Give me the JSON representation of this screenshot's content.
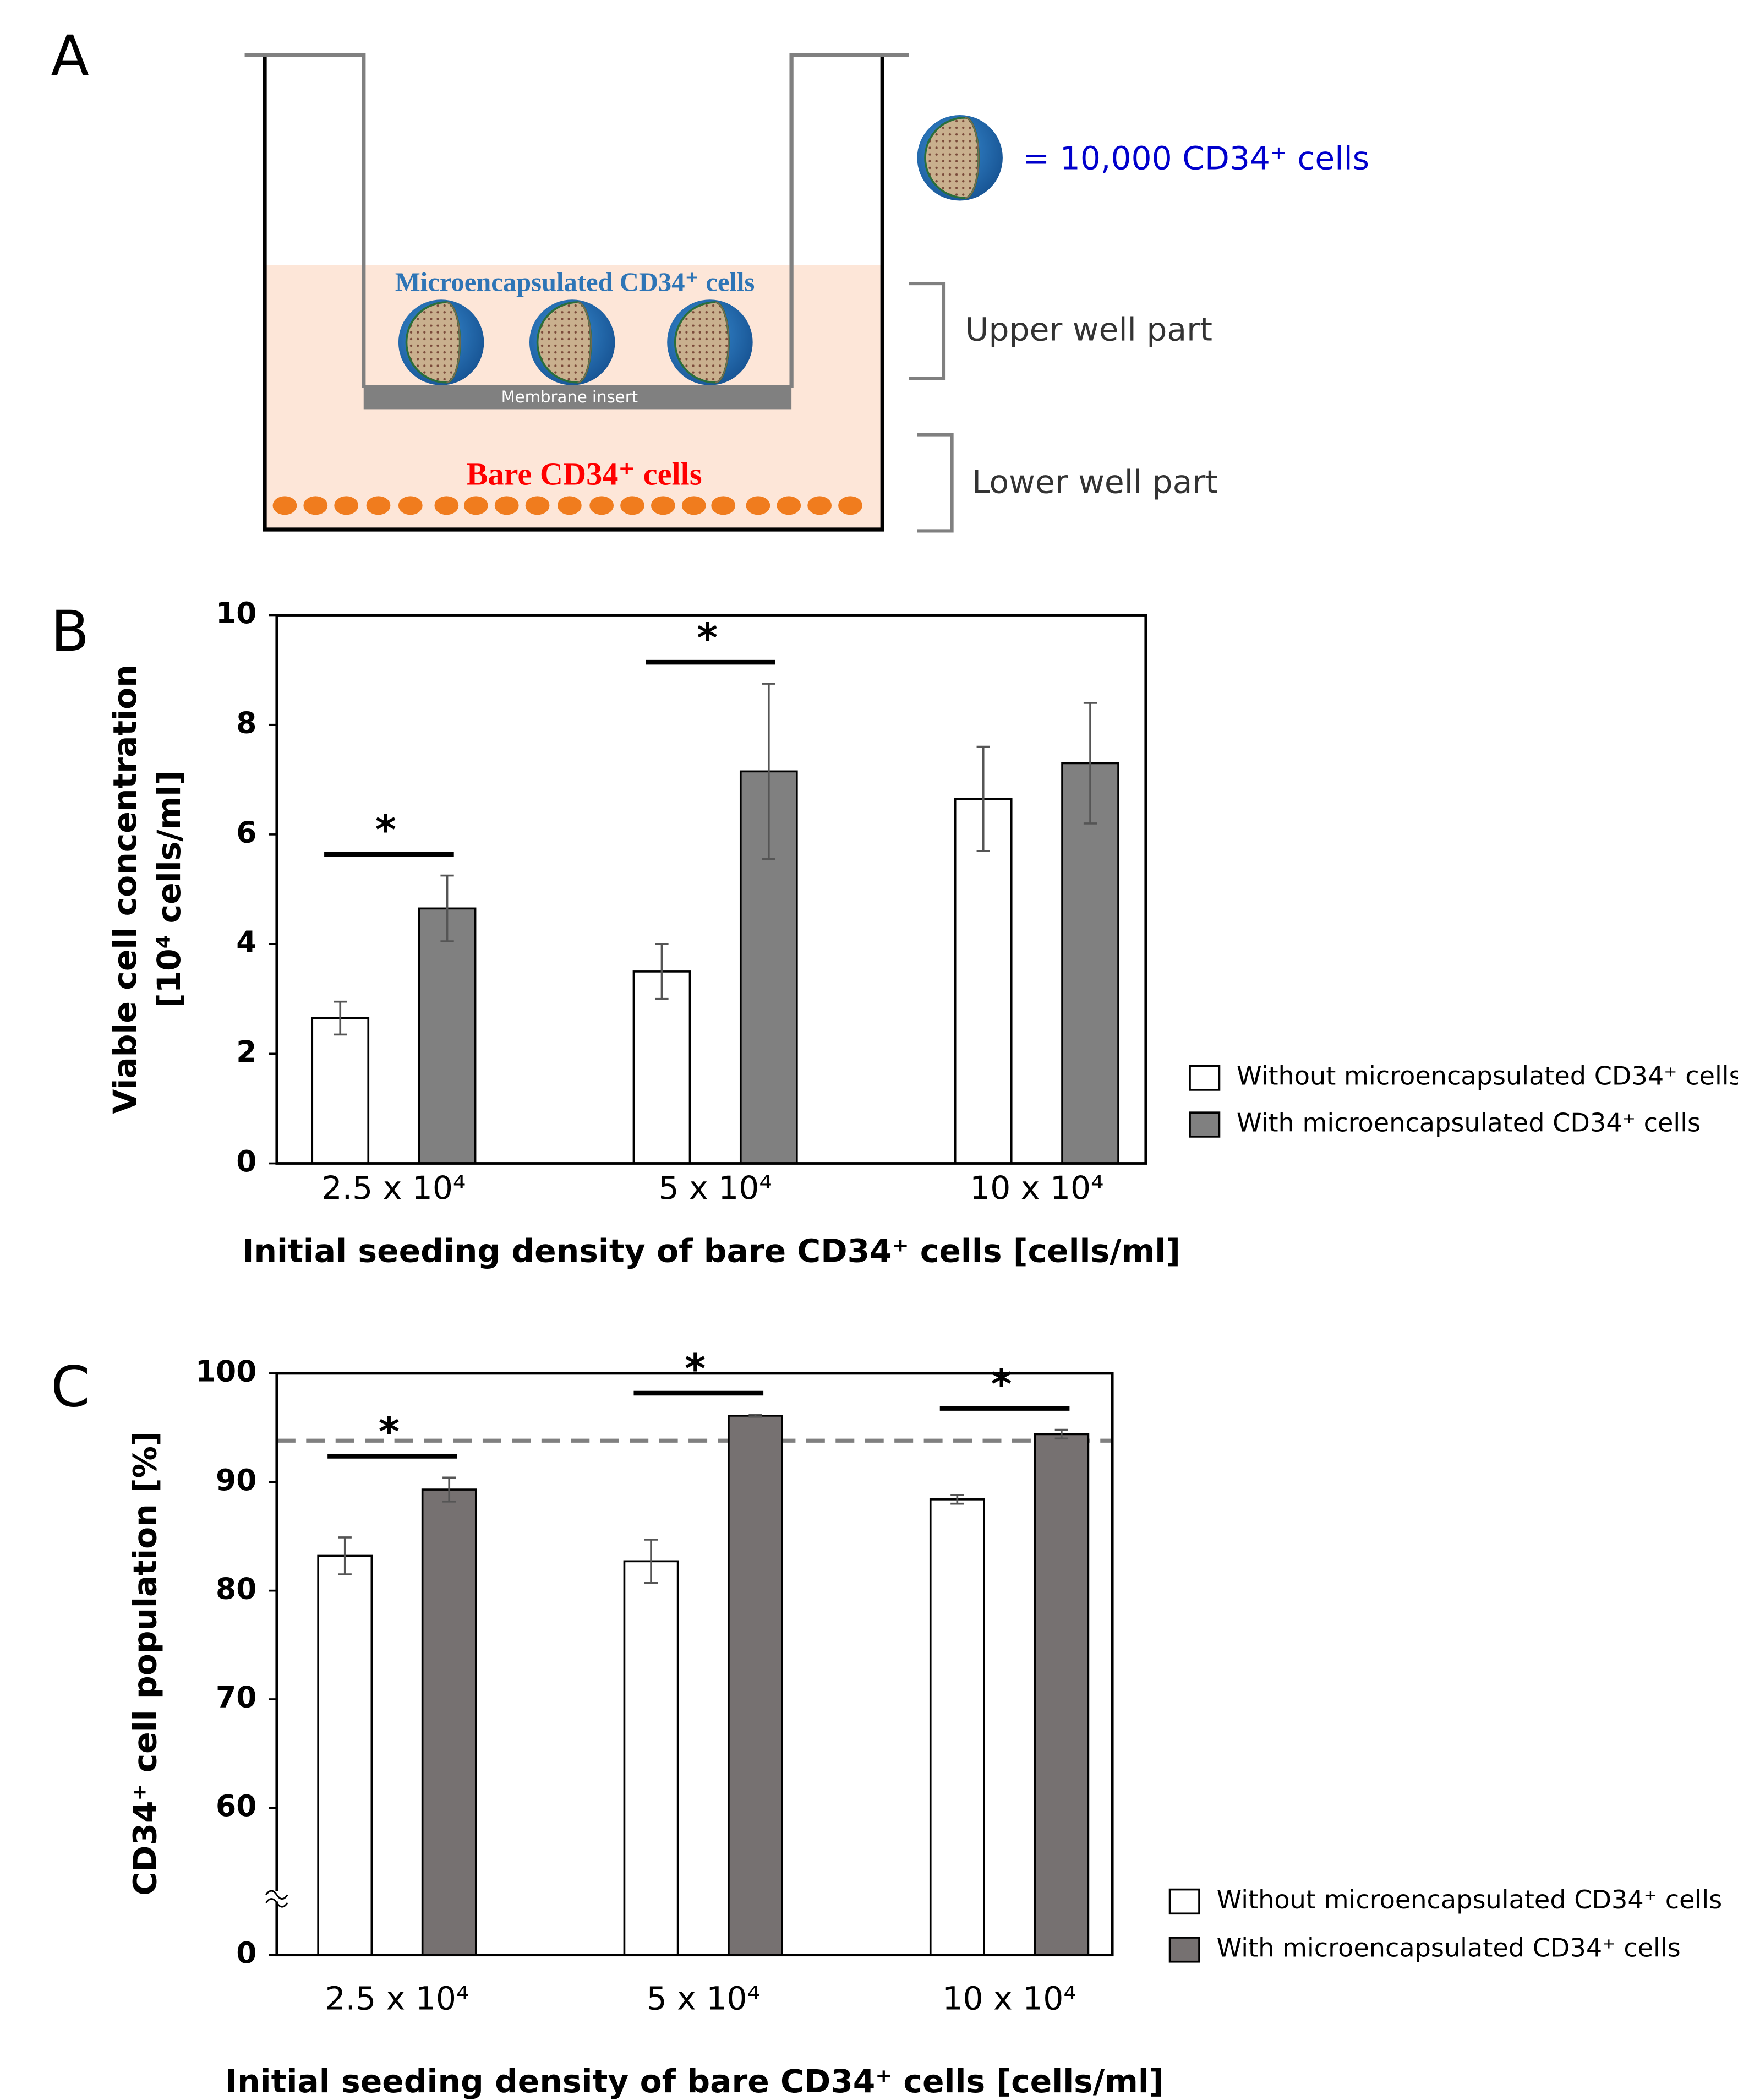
{
  "diagram": {
    "label": "A",
    "sphere_legend": "= 10,000 CD34⁺ cells",
    "insert_label": "Microencapsulated CD34⁺ cells",
    "membrane_label": "Membrane insert",
    "bare_label": "Bare CD34⁺ cells",
    "upper_label": "Upper well part",
    "lower_label": "Lower well part"
  },
  "chart_data": [
    {
      "type": "bar",
      "panel_label": "B",
      "y_label": [
        "Viable cell concentration",
        "[10⁴ cells/ml]"
      ],
      "x_label": "Initial seeding density of bare CD34⁺ cells [cells/ml]",
      "categories": [
        "2.5 x 10⁴",
        "5 x 10⁴",
        "10 x 10⁴"
      ],
      "series": [
        {
          "name": "Without microencapsulated CD34⁺ cells",
          "color": "#ffffff",
          "values": [
            2.65,
            3.5,
            6.65
          ],
          "errors": [
            0.3,
            0.5,
            0.95
          ]
        },
        {
          "name": "With microencapsulated CD34⁺ cells",
          "color": "#808080",
          "values": [
            4.65,
            7.15,
            7.3
          ],
          "errors": [
            0.6,
            1.6,
            1.1
          ]
        }
      ],
      "significant": [
        true,
        true,
        false
      ],
      "significance_label": "*",
      "ylim": [
        0,
        10
      ],
      "yticks": [
        0,
        2,
        4,
        6,
        8,
        10
      ],
      "legend": "right"
    },
    {
      "type": "bar",
      "panel_label": "C",
      "y_label": [
        "CD34⁺ cell population [%]"
      ],
      "x_label": "Initial seeding density of bare CD34⁺ cells [cells/ml]",
      "categories": [
        "2.5 x 10⁴",
        "5 x 10⁴",
        "10 x 10⁴"
      ],
      "series": [
        {
          "name": "Without microencapsulated CD34⁺ cells",
          "color": "#ffffff",
          "values": [
            83.2,
            82.7,
            88.4
          ],
          "errors": [
            1.7,
            2.0,
            0.4
          ]
        },
        {
          "name": "With microencapsulated CD34⁺ cells",
          "color": "#767171",
          "values": [
            89.3,
            96.1,
            94.4
          ],
          "errors": [
            1.1,
            0.1,
            0.4
          ]
        }
      ],
      "significant": [
        true,
        true,
        true
      ],
      "significance_label": "*",
      "reference_line": 93.8,
      "ylim": [
        0,
        100
      ],
      "yticks": [
        0,
        60,
        70,
        80,
        90,
        100
      ],
      "axis_break": true,
      "legend": "right"
    }
  ]
}
